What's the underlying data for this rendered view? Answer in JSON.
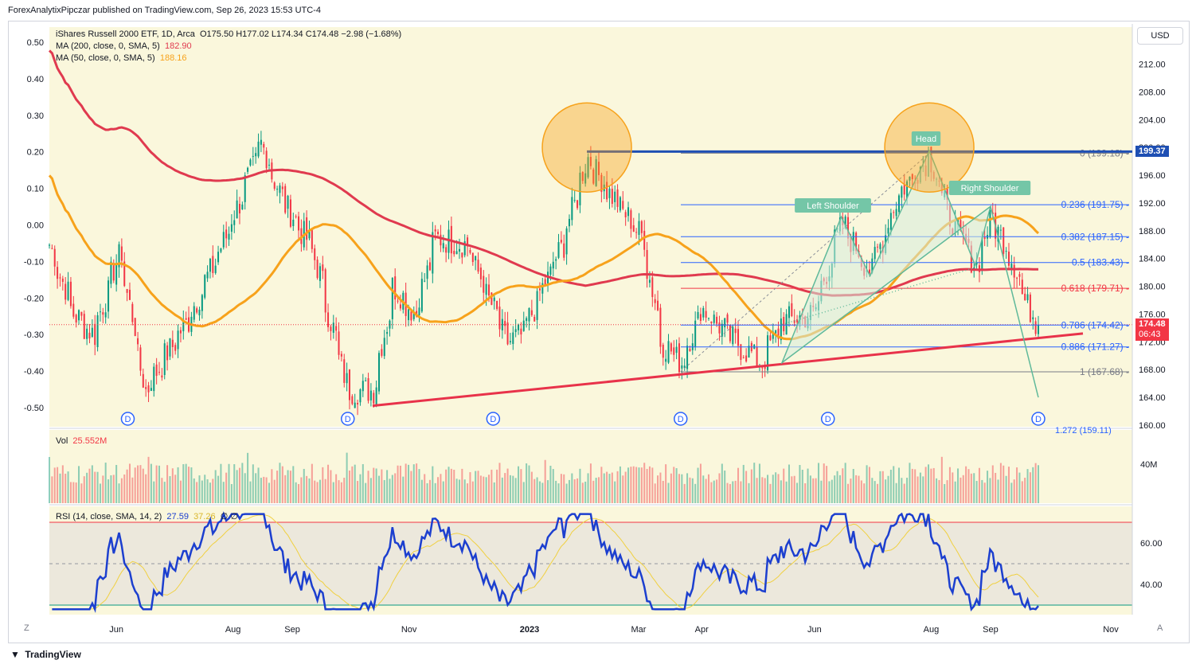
{
  "publisher": "ForexAnalytixPipczar published on TradingView.com, Sep 26, 2023 15:53 UTC-4",
  "currency": "USD",
  "footer_brand": "TradingView",
  "legend": {
    "symbol": "iShares Russell 2000 ETF, 1D, Arca",
    "ohlc": "O175.50  H177.02  L174.34  C174.48  −2.98 (−1.68%)",
    "ma200_label": "MA (200, close, 0, SMA, 5)",
    "ma200_value": "182.90",
    "ma50_label": "MA (50, close, 0, SMA, 5)",
    "ma50_value": "188.16",
    "vol_label": "Vol",
    "vol_value": "25.552M",
    "rsi_label": "RSI (14, close, SMA, 14, 2)",
    "rsi_value": "27.59",
    "rsi_ma_value": "37.26",
    "rsi_extra": "∅ ∅"
  },
  "colors": {
    "pane_bg": "#faf7dc",
    "up": "#089981",
    "down": "#f23645",
    "ma200": "#e03a4f",
    "ma50": "#f7a21b",
    "fib_line": "#2962ff",
    "fib_red": "#f23645",
    "top_line": "#1e4fb3",
    "trend": "#e8324a",
    "hs_fill": "#d5ecdc",
    "hs_stroke": "#5fb99a",
    "circle": "#f7a21b",
    "rsi_line": "#1c3fcf",
    "rsi_ma": "#f0d040"
  },
  "annotations": {
    "head": "Head",
    "left_shoulder": "Left Shoulder",
    "right_shoulder": "Right Shoulder",
    "dividend": "D"
  },
  "price_badges": {
    "top": "199.37",
    "last": "174.48",
    "countdown": "06:43"
  },
  "chart_data": {
    "type": "candlestick",
    "x_axis_ticks": [
      "Jun",
      "Aug",
      "Sep",
      "Nov",
      "2023",
      "Mar",
      "Apr",
      "Jun",
      "Aug",
      "Sep",
      "Nov"
    ],
    "price_axis": {
      "ticks": [
        "212.00",
        "208.00",
        "204.00",
        "200.00",
        "196.00",
        "192.00",
        "188.00",
        "184.00",
        "180.00",
        "176.00",
        "172.00",
        "168.00",
        "164.00",
        "160.00"
      ],
      "ylim": [
        160,
        215
      ]
    },
    "left_axis": {
      "ticks": [
        "0.50",
        "0.40",
        "0.30",
        "0.20",
        "0.10",
        "0.00",
        "-0.10",
        "-0.20",
        "-0.30",
        "-0.40",
        "-0.50"
      ]
    },
    "volume_axis": {
      "ticks": [
        "40M"
      ]
    },
    "rsi_axis": {
      "ticks": [
        "60.00",
        "40.00"
      ],
      "upper_band": 70,
      "lower_band": 30,
      "mid": 50
    },
    "fib_levels": [
      {
        "label": "0 (199.18)",
        "value": 199.18
      },
      {
        "label": "0.236 (191.75)",
        "value": 191.75
      },
      {
        "label": "0.382 (187.15)",
        "value": 187.15
      },
      {
        "label": "0.5 (183.43)",
        "value": 183.43
      },
      {
        "label": "0.618 (179.71)",
        "value": 179.71
      },
      {
        "label": "0.786 (174.42)",
        "value": 174.42
      },
      {
        "label": "0.886 (171.27)",
        "value": 171.27
      },
      {
        "label": "1 (167.68)",
        "value": 167.68
      },
      {
        "label": "1.272 (159.11)",
        "value": 159.11
      }
    ],
    "close_path": [
      {
        "date": "2022-04-27",
        "close": 186.0
      },
      {
        "date": "2022-05-10",
        "close": 176.0
      },
      {
        "date": "2022-05-20",
        "close": 173.0
      },
      {
        "date": "2022-06-03",
        "close": 185.0
      },
      {
        "date": "2022-06-16",
        "close": 165.0
      },
      {
        "date": "2022-07-08",
        "close": 175.0
      },
      {
        "date": "2022-07-25",
        "close": 185.0
      },
      {
        "date": "2022-08-16",
        "close": 200.5
      },
      {
        "date": "2022-08-26",
        "close": 193.0
      },
      {
        "date": "2022-09-12",
        "close": 185.0
      },
      {
        "date": "2022-09-30",
        "close": 165.0
      },
      {
        "date": "2022-10-13",
        "close": 165.0
      },
      {
        "date": "2022-10-24",
        "close": 180.0
      },
      {
        "date": "2022-11-04",
        "close": 176.0
      },
      {
        "date": "2022-11-15",
        "close": 187.0
      },
      {
        "date": "2022-12-01",
        "close": 186.0
      },
      {
        "date": "2022-12-22",
        "close": 172.0
      },
      {
        "date": "2022-12-30",
        "close": 173.0
      },
      {
        "date": "2023-01-20",
        "close": 186.0
      },
      {
        "date": "2023-02-02",
        "close": 198.5
      },
      {
        "date": "2023-02-15",
        "close": 193.0
      },
      {
        "date": "2023-03-03",
        "close": 187.0
      },
      {
        "date": "2023-03-13",
        "close": 172.0
      },
      {
        "date": "2023-03-23",
        "close": 169.0
      },
      {
        "date": "2023-04-03",
        "close": 177.0
      },
      {
        "date": "2023-04-20",
        "close": 172.0
      },
      {
        "date": "2023-05-04",
        "close": 169.0
      },
      {
        "date": "2023-05-15",
        "close": 175.0
      },
      {
        "date": "2023-05-31",
        "close": 176.0
      },
      {
        "date": "2023-06-15",
        "close": 189.0
      },
      {
        "date": "2023-06-30",
        "close": 182.0
      },
      {
        "date": "2023-07-14",
        "close": 193.0
      },
      {
        "date": "2023-07-31",
        "close": 199.0
      },
      {
        "date": "2023-08-10",
        "close": 190.0
      },
      {
        "date": "2023-08-24",
        "close": 183.0
      },
      {
        "date": "2023-09-01",
        "close": 190.0
      },
      {
        "date": "2023-09-12",
        "close": 184.0
      },
      {
        "date": "2023-09-20",
        "close": 177.0
      },
      {
        "date": "2023-09-26",
        "close": 174.48
      }
    ]
  }
}
